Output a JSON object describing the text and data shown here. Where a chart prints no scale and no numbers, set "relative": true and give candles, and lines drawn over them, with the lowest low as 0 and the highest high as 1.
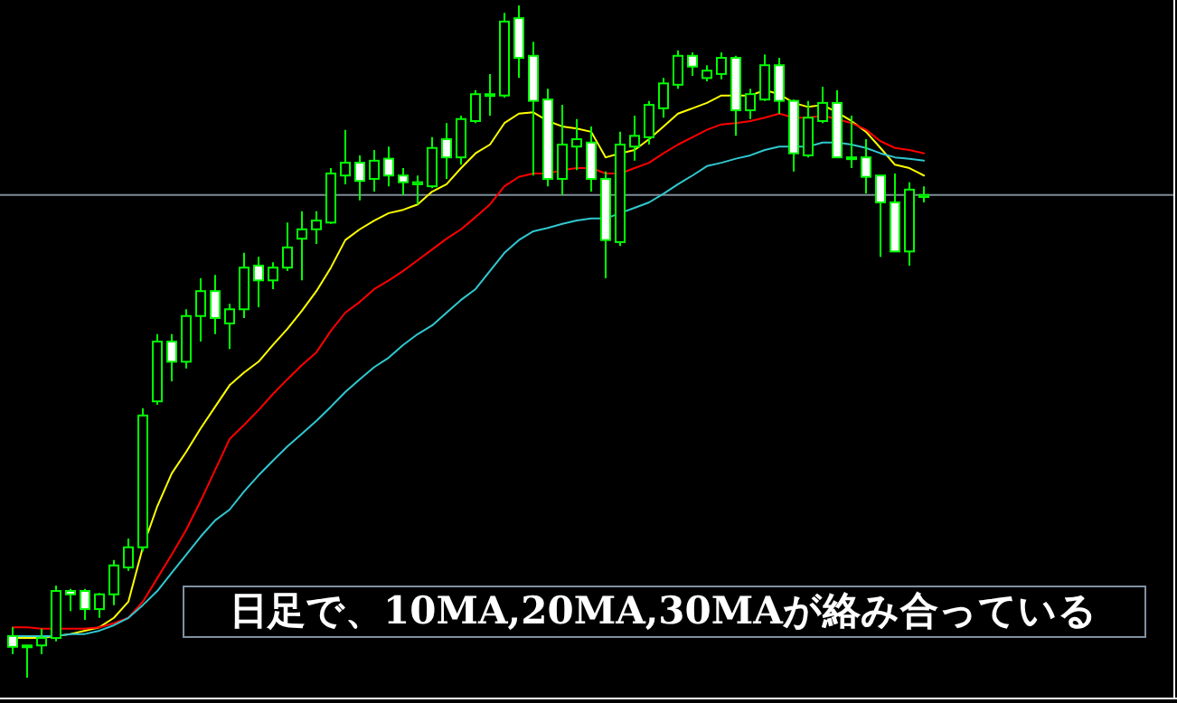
{
  "chart_data": {
    "type": "candlestick",
    "relative": true,
    "categories": [
      null,
      null,
      null,
      null,
      null,
      null,
      null,
      null,
      null,
      null,
      null,
      null,
      null,
      null,
      null,
      null,
      null,
      null,
      null,
      null,
      null,
      null,
      null,
      null,
      null,
      null,
      null,
      null,
      null,
      null,
      null,
      null,
      null,
      null,
      null,
      null,
      null,
      null,
      null,
      null,
      null,
      null,
      null,
      null,
      null,
      null,
      null,
      null,
      null,
      null,
      null,
      null,
      null,
      null,
      null,
      null,
      null,
      null,
      null,
      null,
      null,
      null,
      null,
      null
    ],
    "ohlc": [
      [
        0.062,
        0.075,
        0.035,
        0.046
      ],
      [
        0.046,
        0.048,
        0,
        0.048
      ],
      [
        0.048,
        0.073,
        0.035,
        0.059
      ],
      [
        0.059,
        0.137,
        0.054,
        0.129
      ],
      [
        0.129,
        0.132,
        0.099,
        0.124
      ],
      [
        0.129,
        0.132,
        0.086,
        0.102
      ],
      [
        0.102,
        0.126,
        0.089,
        0.124
      ],
      [
        0.124,
        0.175,
        0.108,
        0.167
      ],
      [
        0.164,
        0.207,
        0.159,
        0.194
      ],
      [
        0.194,
        0.401,
        0.188,
        0.39
      ],
      [
        0.411,
        0.511,
        0.406,
        0.5
      ],
      [
        0.5,
        0.511,
        0.441,
        0.47
      ],
      [
        0.47,
        0.548,
        0.46,
        0.538
      ],
      [
        0.538,
        0.594,
        0.5,
        0.575
      ],
      [
        0.575,
        0.599,
        0.511,
        0.535
      ],
      [
        0.527,
        0.556,
        0.489,
        0.548
      ],
      [
        0.548,
        0.632,
        0.535,
        0.61
      ],
      [
        0.613,
        0.626,
        0.551,
        0.591
      ],
      [
        0.591,
        0.618,
        0.578,
        0.61
      ],
      [
        0.61,
        0.677,
        0.605,
        0.64
      ],
      [
        0.653,
        0.694,
        0.591,
        0.667
      ],
      [
        0.667,
        0.694,
        0.645,
        0.68
      ],
      [
        0.677,
        0.758,
        0.675,
        0.75
      ],
      [
        0.747,
        0.815,
        0.734,
        0.766
      ],
      [
        0.766,
        0.777,
        0.71,
        0.739
      ],
      [
        0.742,
        0.785,
        0.723,
        0.769
      ],
      [
        0.772,
        0.79,
        0.731,
        0.747
      ],
      [
        0.747,
        0.758,
        0.718,
        0.737
      ],
      [
        0.734,
        0.747,
        0.704,
        0.737
      ],
      [
        0.731,
        0.804,
        0.728,
        0.788
      ],
      [
        0.801,
        0.825,
        0.742,
        0.774
      ],
      [
        0.774,
        0.836,
        0.763,
        0.831
      ],
      [
        0.828,
        0.874,
        0.825,
        0.868
      ],
      [
        0.866,
        0.898,
        0.836,
        0.868
      ],
      [
        0.866,
        0.989,
        0.863,
        0.976
      ],
      [
        0.981,
        1,
        0.892,
        0.922
      ],
      [
        0.925,
        0.946,
        0.747,
        0.858
      ],
      [
        0.86,
        0.876,
        0.731,
        0.742
      ],
      [
        0.742,
        0.852,
        0.718,
        0.793
      ],
      [
        0.79,
        0.831,
        0.755,
        0.801
      ],
      [
        0.796,
        0.82,
        0.723,
        0.742
      ],
      [
        0.742,
        0.753,
        0.594,
        0.651
      ],
      [
        0.648,
        0.812,
        0.642,
        0.793
      ],
      [
        0.79,
        0.836,
        0.769,
        0.806
      ],
      [
        0.804,
        0.858,
        0.793,
        0.852
      ],
      [
        0.847,
        0.892,
        0.833,
        0.884
      ],
      [
        0.882,
        0.933,
        0.876,
        0.925
      ],
      [
        0.925,
        0.93,
        0.895,
        0.909
      ],
      [
        0.892,
        0.911,
        0.887,
        0.903
      ],
      [
        0.898,
        0.93,
        0.89,
        0.922
      ],
      [
        0.922,
        0.925,
        0.806,
        0.844
      ],
      [
        0.844,
        0.876,
        0.831,
        0.868
      ],
      [
        0.86,
        0.927,
        0.858,
        0.911
      ],
      [
        0.911,
        0.922,
        0.839,
        0.858
      ],
      [
        0.858,
        0.86,
        0.753,
        0.78
      ],
      [
        0.777,
        0.858,
        0.774,
        0.833
      ],
      [
        0.828,
        0.879,
        0.825,
        0.855
      ],
      [
        0.855,
        0.874,
        0.774,
        0.774
      ],
      [
        0.774,
        0.836,
        0.758,
        0.772
      ],
      [
        0.774,
        0.801,
        0.72,
        0.745
      ],
      [
        0.747,
        0.747,
        0.626,
        0.707
      ],
      [
        0.707,
        0.75,
        0.634,
        0.634
      ],
      [
        0.634,
        0.737,
        0.613,
        0.726
      ],
      [
        0.715,
        0.731,
        0.707,
        0.718
      ]
    ],
    "series": [
      {
        "type": "line",
        "color": "#ffff00",
        "values": [
          0.059,
          0.059,
          0.059,
          0.062,
          0.065,
          0.07,
          0.075,
          0.089,
          0.113,
          0.194,
          0.255,
          0.304,
          0.336,
          0.371,
          0.403,
          0.435,
          0.454,
          0.47,
          0.495,
          0.519,
          0.546,
          0.575,
          0.61,
          0.651,
          0.667,
          0.68,
          0.691,
          0.696,
          0.704,
          0.723,
          0.734,
          0.758,
          0.78,
          0.793,
          0.825,
          0.839,
          0.841,
          0.828,
          0.82,
          0.817,
          0.812,
          0.774,
          0.78,
          0.785,
          0.801,
          0.82,
          0.839,
          0.847,
          0.855,
          0.866,
          0.866,
          0.866,
          0.874,
          0.868,
          0.855,
          0.849,
          0.852,
          0.841,
          0.828,
          0.812,
          0.788,
          0.763,
          0.758,
          0.747
        ]
      },
      {
        "type": "line",
        "color": "#ff0000",
        "values": [
          0.075,
          0.075,
          0.073,
          0.073,
          0.073,
          0.073,
          0.075,
          0.081,
          0.089,
          0.113,
          0.148,
          0.183,
          0.22,
          0.263,
          0.309,
          0.355,
          0.376,
          0.398,
          0.422,
          0.444,
          0.465,
          0.484,
          0.516,
          0.543,
          0.559,
          0.578,
          0.591,
          0.605,
          0.621,
          0.637,
          0.653,
          0.667,
          0.685,
          0.704,
          0.731,
          0.745,
          0.75,
          0.75,
          0.755,
          0.758,
          0.758,
          0.75,
          0.75,
          0.758,
          0.766,
          0.78,
          0.793,
          0.804,
          0.815,
          0.823,
          0.825,
          0.828,
          0.833,
          0.839,
          0.833,
          0.833,
          0.836,
          0.831,
          0.825,
          0.815,
          0.798,
          0.788,
          0.785,
          0.78
        ]
      },
      {
        "type": "line",
        "color": "#30c8d0",
        "values": [
          0.062,
          0.062,
          0.062,
          0.062,
          0.065,
          0.065,
          0.07,
          0.078,
          0.089,
          0.108,
          0.129,
          0.156,
          0.183,
          0.21,
          0.234,
          0.25,
          0.277,
          0.301,
          0.323,
          0.344,
          0.363,
          0.382,
          0.403,
          0.425,
          0.444,
          0.462,
          0.476,
          0.495,
          0.511,
          0.524,
          0.543,
          0.562,
          0.578,
          0.605,
          0.632,
          0.651,
          0.664,
          0.669,
          0.675,
          0.68,
          0.683,
          0.683,
          0.691,
          0.699,
          0.707,
          0.72,
          0.734,
          0.747,
          0.761,
          0.766,
          0.772,
          0.777,
          0.785,
          0.79,
          0.79,
          0.79,
          0.796,
          0.796,
          0.793,
          0.788,
          0.78,
          0.774,
          0.772,
          0.769
        ]
      }
    ],
    "ref_lines": [
      {
        "axis": "y",
        "value": 0.718,
        "color": "#7f8c99"
      }
    ],
    "annotations": [
      "日足で、10MA,20MA,30MAが絡み合っている"
    ]
  }
}
